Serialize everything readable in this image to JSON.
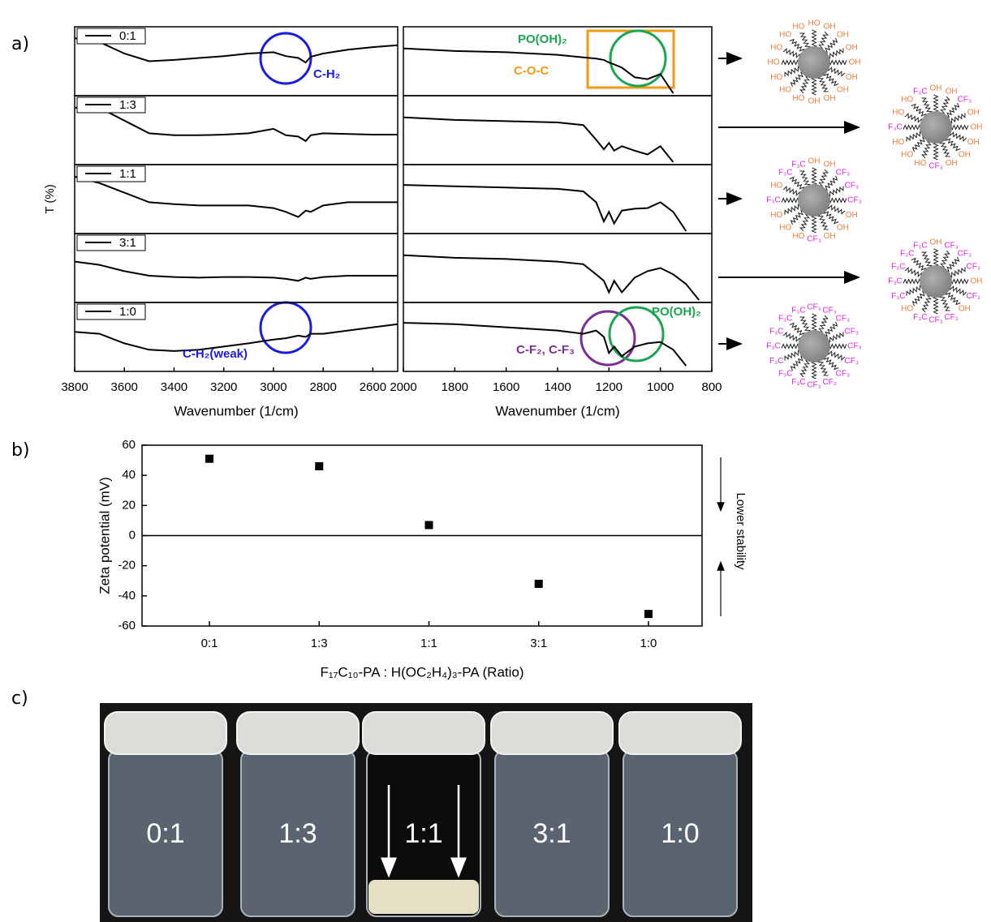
{
  "panel_labels": [
    "a)",
    "b)",
    "c)"
  ],
  "chart_data": [
    {
      "type": "line",
      "ylabel": "T (%)",
      "xlabel": "Wavenumber (1/cm)",
      "x": [
        3800,
        3700,
        3600,
        3500,
        3400,
        3300,
        3200,
        3100,
        3000,
        2950,
        2900,
        2870,
        2850,
        2800,
        2700,
        2600,
        2500
      ],
      "xlim": [
        3800,
        2500
      ],
      "xticks": [
        3800,
        3600,
        3400,
        3200,
        3000,
        2800,
        2600
      ],
      "ylim": [
        0,
        1
      ],
      "series": [
        {
          "name": "0:1",
          "color": "#000000",
          "values": [
            0.86,
            0.8,
            0.62,
            0.5,
            0.52,
            0.55,
            0.58,
            0.62,
            0.64,
            0.58,
            0.55,
            0.48,
            0.57,
            0.62,
            0.68,
            0.72,
            0.75
          ]
        },
        {
          "name": "1:3",
          "color": "#000000",
          "values": [
            0.85,
            0.85,
            0.65,
            0.45,
            0.42,
            0.42,
            0.43,
            0.45,
            0.52,
            0.42,
            0.4,
            0.33,
            0.42,
            0.45,
            0.44,
            0.43,
            0.43
          ]
        },
        {
          "name": "1:1",
          "color": "#000000",
          "values": [
            0.85,
            0.75,
            0.6,
            0.45,
            0.42,
            0.4,
            0.4,
            0.4,
            0.36,
            0.3,
            0.22,
            0.32,
            0.3,
            0.4,
            0.45,
            0.45,
            0.45
          ]
        },
        {
          "name": "3:1",
          "color": "#000000",
          "values": [
            0.6,
            0.55,
            0.45,
            0.38,
            0.36,
            0.35,
            0.36,
            0.36,
            0.35,
            0.33,
            0.3,
            0.35,
            0.33,
            0.36,
            0.38,
            0.38,
            0.38
          ]
        },
        {
          "name": "1:0",
          "color": "#000000",
          "values": [
            0.58,
            0.55,
            0.4,
            0.3,
            0.28,
            0.3,
            0.35,
            0.4,
            0.46,
            0.48,
            0.52,
            0.5,
            0.55,
            0.55,
            0.6,
            0.65,
            0.7
          ]
        }
      ],
      "annotations": [
        {
          "text": "C-H₂",
          "color": "#1a1ae6"
        },
        {
          "text": "C-H₂(weak)",
          "color": "#1a1ae6"
        }
      ]
    },
    {
      "type": "line",
      "xlabel": "Wavenumber (1/cm)",
      "x": [
        2000,
        1800,
        1600,
        1400,
        1300,
        1250,
        1220,
        1200,
        1180,
        1150,
        1100,
        1050,
        1000,
        950,
        900,
        850,
        800
      ],
      "xlim": [
        2000,
        800
      ],
      "xticks": [
        2000,
        1800,
        1600,
        1400,
        1200,
        1000,
        800
      ],
      "ylim": [
        0,
        1
      ],
      "series": [
        {
          "color": "#000000",
          "values": [
            0.7,
            0.66,
            0.64,
            0.6,
            0.56,
            0.54,
            0.52,
            0.48,
            0.45,
            0.4,
            0.25,
            0.22,
            0.3,
            0.0,
            null,
            null,
            null
          ]
        },
        {
          "color": "#000000",
          "values": [
            0.7,
            0.66,
            0.64,
            0.62,
            0.58,
            0.35,
            0.2,
            0.3,
            0.18,
            0.25,
            0.18,
            0.12,
            0.25,
            0.0,
            null,
            null,
            null
          ]
        },
        {
          "color": "#000000",
          "values": [
            0.72,
            0.7,
            0.68,
            0.66,
            0.62,
            0.45,
            0.15,
            0.3,
            0.12,
            0.32,
            0.35,
            0.36,
            0.45,
            0.3,
            0.0,
            null,
            null
          ]
        },
        {
          "color": "#000000",
          "values": [
            0.7,
            0.66,
            0.64,
            0.6,
            0.56,
            0.4,
            0.3,
            0.12,
            0.3,
            0.12,
            0.35,
            0.45,
            0.5,
            0.4,
            0.25,
            0.0,
            null
          ]
        },
        {
          "color": "#000000",
          "values": [
            0.72,
            0.7,
            0.65,
            0.6,
            0.55,
            0.6,
            0.5,
            0.25,
            0.35,
            0.2,
            0.35,
            0.4,
            0.42,
            0.3,
            0.05,
            null,
            null
          ]
        }
      ],
      "annotations": [
        {
          "text": "PO(OH)₂",
          "color": "#1aa64f"
        },
        {
          "text": "C-O-C",
          "color": "#f39a12"
        },
        {
          "text": "C-F₂, C-F₃",
          "color": "#7b2d96"
        },
        {
          "text": "PO(OH)₂",
          "color": "#1aa64f"
        }
      ]
    },
    {
      "type": "scatter",
      "ylabel": "Zeta potential (mV)",
      "xlabel": "F₁₇C₁₀-PA : H(OC₂H₄)₃-PA (Ratio)",
      "categories": [
        "0:1",
        "1:3",
        "1:1",
        "3:1",
        "1:0"
      ],
      "values": [
        51,
        46,
        7,
        -32,
        -52
      ],
      "ylim": [
        -60,
        60
      ],
      "yticks": [
        -60,
        -40,
        -20,
        0,
        20,
        40,
        60
      ],
      "color": "#000000",
      "side_note": "Lower stability"
    }
  ],
  "ligand_colors": {
    "HO": "#f07c3c",
    "OH": "#f07c3c",
    "CF₃": "#e020e0",
    "F₃C": "#e020e0"
  },
  "particles": [
    [
      "HO",
      "OH",
      "OH",
      "OH",
      "OH",
      "OH",
      "OH",
      "OH",
      "OH",
      "HO",
      "HO",
      "HO",
      "HO",
      "HO",
      "HO",
      "HO"
    ],
    [
      "OH",
      "OH",
      "CF₃",
      "OH",
      "OH",
      "OH",
      "OH",
      "OH",
      "CF₃",
      "HO",
      "HO",
      "HO",
      "F₃C",
      "HO",
      "HO",
      "F₃C"
    ],
    [
      "OH",
      "OH",
      "CF₃",
      "CF₃",
      "CF₃",
      "OH",
      "OH",
      "OH",
      "CF₃",
      "HO",
      "HO",
      "HO",
      "F₃C",
      "HO",
      "F₃C",
      "F₃C"
    ],
    [
      "OH",
      "CF₃",
      "CF₃",
      "CF₃",
      "OH",
      "CF₃",
      "OH",
      "CF₃",
      "CF₃",
      "F₃C",
      "HO",
      "F₃C",
      "F₃C",
      "F₃C",
      "F₃C",
      "F₃C"
    ],
    [
      "CF₃",
      "CF₃",
      "CF₃",
      "CF₃",
      "CF₃",
      "CF₃",
      "CF₃",
      "CF₃",
      "CF₃",
      "F₃C",
      "F₃C",
      "F₃C",
      "F₃C",
      "F₃C",
      "F₃C",
      "F₃C"
    ]
  ],
  "vials": [
    "0:1",
    "1:3",
    "1:1",
    "3:1",
    "1:0"
  ]
}
